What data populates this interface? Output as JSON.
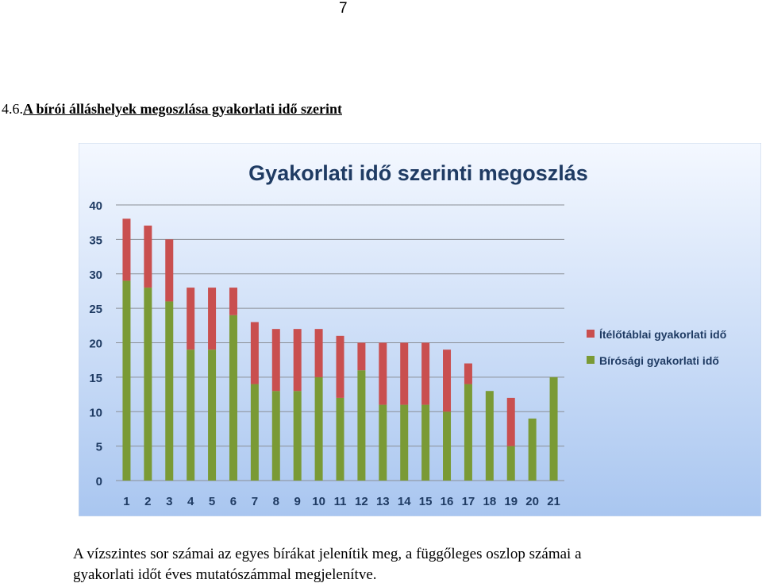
{
  "page_number": "7",
  "section": {
    "number": "4.6.",
    "title": "A bírói álláshelyek megoszlása gyakorlati idő szerint"
  },
  "chart_data": {
    "type": "bar",
    "stacked": true,
    "title": "Gyakorlati idő szerinti megoszlás",
    "xlabel": "",
    "ylabel": "",
    "categories": [
      "1",
      "2",
      "3",
      "4",
      "5",
      "6",
      "7",
      "8",
      "9",
      "10",
      "11",
      "12",
      "13",
      "14",
      "15",
      "16",
      "17",
      "18",
      "19",
      "20",
      "21"
    ],
    "ylim": [
      0,
      40
    ],
    "yticks": [
      0,
      5,
      10,
      15,
      20,
      25,
      30,
      35,
      40
    ],
    "grid": true,
    "legend_position": "right",
    "series": [
      {
        "name": "Bírósági gyakorlati idő",
        "color": "#7a9a35",
        "values": [
          29,
          28,
          26,
          19,
          19,
          24,
          14,
          13,
          13,
          15,
          12,
          16,
          11,
          11,
          11,
          10,
          14,
          13,
          5,
          9,
          15
        ]
      },
      {
        "name": "Ítélőtáblai gyakorlati idő",
        "color": "#c94f4f",
        "values": [
          9,
          9,
          9,
          9,
          9,
          4,
          9,
          9,
          9,
          7,
          9,
          4,
          9,
          9,
          9,
          9,
          3,
          0,
          7,
          0,
          0
        ]
      }
    ]
  },
  "caption": {
    "line1": "A vízszintes sor számai az egyes bírákat jelenítik meg, a függőleges oszlop számai a",
    "line2": "gyakorlati időt éves mutatószámmal megjelenítve."
  }
}
